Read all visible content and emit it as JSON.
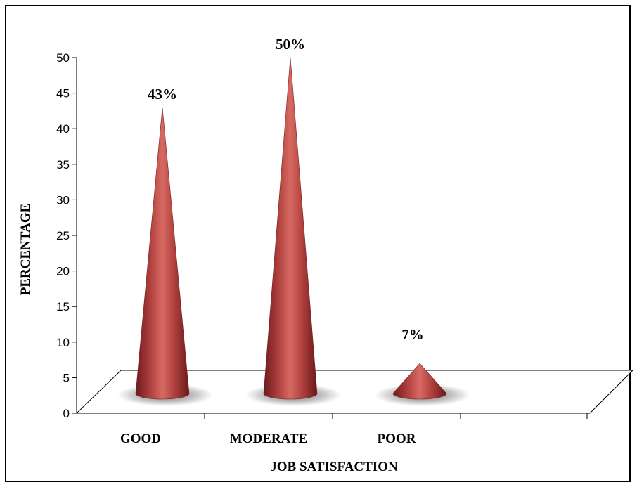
{
  "chart_data": {
    "type": "bar",
    "style": "3d-cone",
    "categories": [
      "GOOD",
      "MODERATE",
      "POOR"
    ],
    "values": [
      43,
      50,
      7
    ],
    "data_labels": [
      "43%",
      "50%",
      "7%"
    ],
    "xlabel": "JOB SATISFACTION",
    "ylabel": "PERCENTAGE",
    "ylim": [
      0,
      50
    ],
    "yticks": [
      0,
      5,
      10,
      15,
      20,
      25,
      30,
      35,
      40,
      45,
      50
    ],
    "grid": false,
    "legend": "none",
    "color": "#a8353a"
  }
}
